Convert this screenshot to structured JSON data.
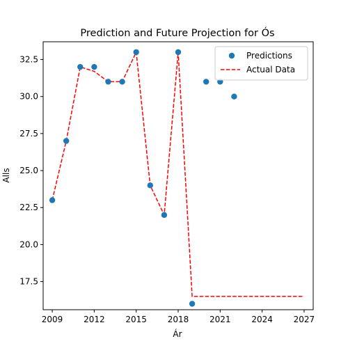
{
  "chart_data": {
    "type": "scatter",
    "title": "Prediction and Future Projection for Ós",
    "xlabel": "Ár",
    "ylabel": "Alls",
    "xlim": [
      2008.35,
      2027.65
    ],
    "ylim": [
      15.6,
      33.7
    ],
    "x_ticks": [
      2009,
      2012,
      2015,
      2018,
      2021,
      2024,
      2027
    ],
    "y_ticks": [
      17.5,
      20.0,
      22.5,
      25.0,
      27.5,
      30.0,
      32.5
    ],
    "y_tick_labels": [
      "17.5",
      "20.0",
      "22.5",
      "25.0",
      "27.5",
      "30.0",
      "32.5"
    ],
    "grid": false,
    "legend_position": "upper right",
    "series": [
      {
        "name": "Predictions",
        "kind": "scatter",
        "color": "#1f77b4",
        "x": [
          2009,
          2010,
          2011,
          2012,
          2013,
          2014,
          2015,
          2016,
          2017,
          2018,
          2019,
          2020,
          2021,
          2022
        ],
        "values": [
          23,
          27,
          32,
          32,
          31,
          31,
          33,
          24,
          22,
          33,
          16,
          31,
          31,
          30
        ]
      },
      {
        "name": "Actual Data",
        "kind": "line",
        "style": "dashed",
        "color": "#ff0000",
        "x": [
          2009,
          2010,
          2011,
          2012,
          2013,
          2014,
          2015,
          2016,
          2017,
          2018,
          2019,
          2020,
          2021,
          2022,
          2023,
          2024,
          2025,
          2026,
          2027
        ],
        "values": [
          23,
          27,
          32,
          31.7,
          31,
          31,
          33,
          24,
          22,
          33,
          16.5,
          16.5,
          16.5,
          16.5,
          16.5,
          16.5,
          16.5,
          16.5,
          16.5
        ]
      }
    ]
  }
}
